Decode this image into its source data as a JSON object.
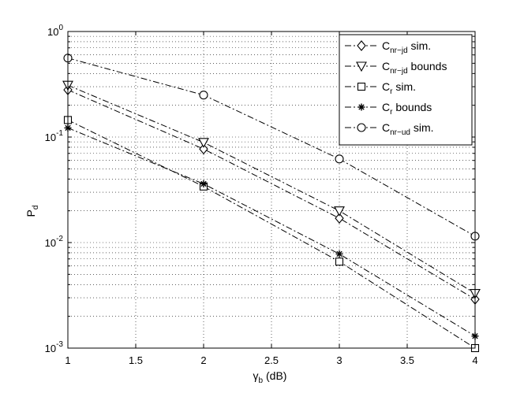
{
  "chart_data": {
    "type": "line",
    "y_scale": "log",
    "grid": true,
    "legend_position": "top-right",
    "xlim": [
      1,
      4
    ],
    "ylim": [
      0.001,
      1
    ],
    "x_ticks": [
      "1",
      "1.5",
      "2",
      "2.5",
      "3",
      "3.5",
      "4"
    ],
    "y_ticks": [
      {
        "base": "10",
        "exp": "0"
      },
      {
        "base": "10",
        "exp": "-1"
      },
      {
        "base": "10",
        "exp": "-2"
      },
      {
        "base": "10",
        "exp": "-3"
      }
    ],
    "xlabel": {
      "main": "γ",
      "sub": "b",
      "suffix": " (dB)"
    },
    "ylabel": {
      "main": "P",
      "sub": "d"
    },
    "series": [
      {
        "legend_main": "C",
        "legend_sub": "nr−jd",
        "legend_suffix": " sim.",
        "marker": "diamond",
        "x": [
          1,
          2,
          3,
          4
        ],
        "y": [
          0.28,
          0.077,
          0.017,
          0.0029
        ]
      },
      {
        "legend_main": "C",
        "legend_sub": "nr−jd",
        "legend_suffix": " bounds",
        "marker": "triangle-down",
        "x": [
          1,
          2,
          3,
          4
        ],
        "y": [
          0.31,
          0.089,
          0.02,
          0.0033
        ]
      },
      {
        "legend_main": "C",
        "legend_sub": "r",
        "legend_suffix": " sim.",
        "marker": "square",
        "x": [
          1,
          2,
          3,
          4
        ],
        "y": [
          0.145,
          0.034,
          0.0066,
          0.001
        ]
      },
      {
        "legend_main": "C",
        "legend_sub": "r",
        "legend_suffix": " bounds",
        "marker": "star",
        "x": [
          1,
          2,
          3,
          4
        ],
        "y": [
          0.122,
          0.036,
          0.0078,
          0.0013
        ]
      },
      {
        "legend_main": "C",
        "legend_sub": "nr−ud",
        "legend_suffix": " sim.",
        "marker": "circle",
        "x": [
          1,
          2,
          3,
          4
        ],
        "y": [
          0.56,
          0.25,
          0.062,
          0.0115
        ]
      }
    ]
  }
}
